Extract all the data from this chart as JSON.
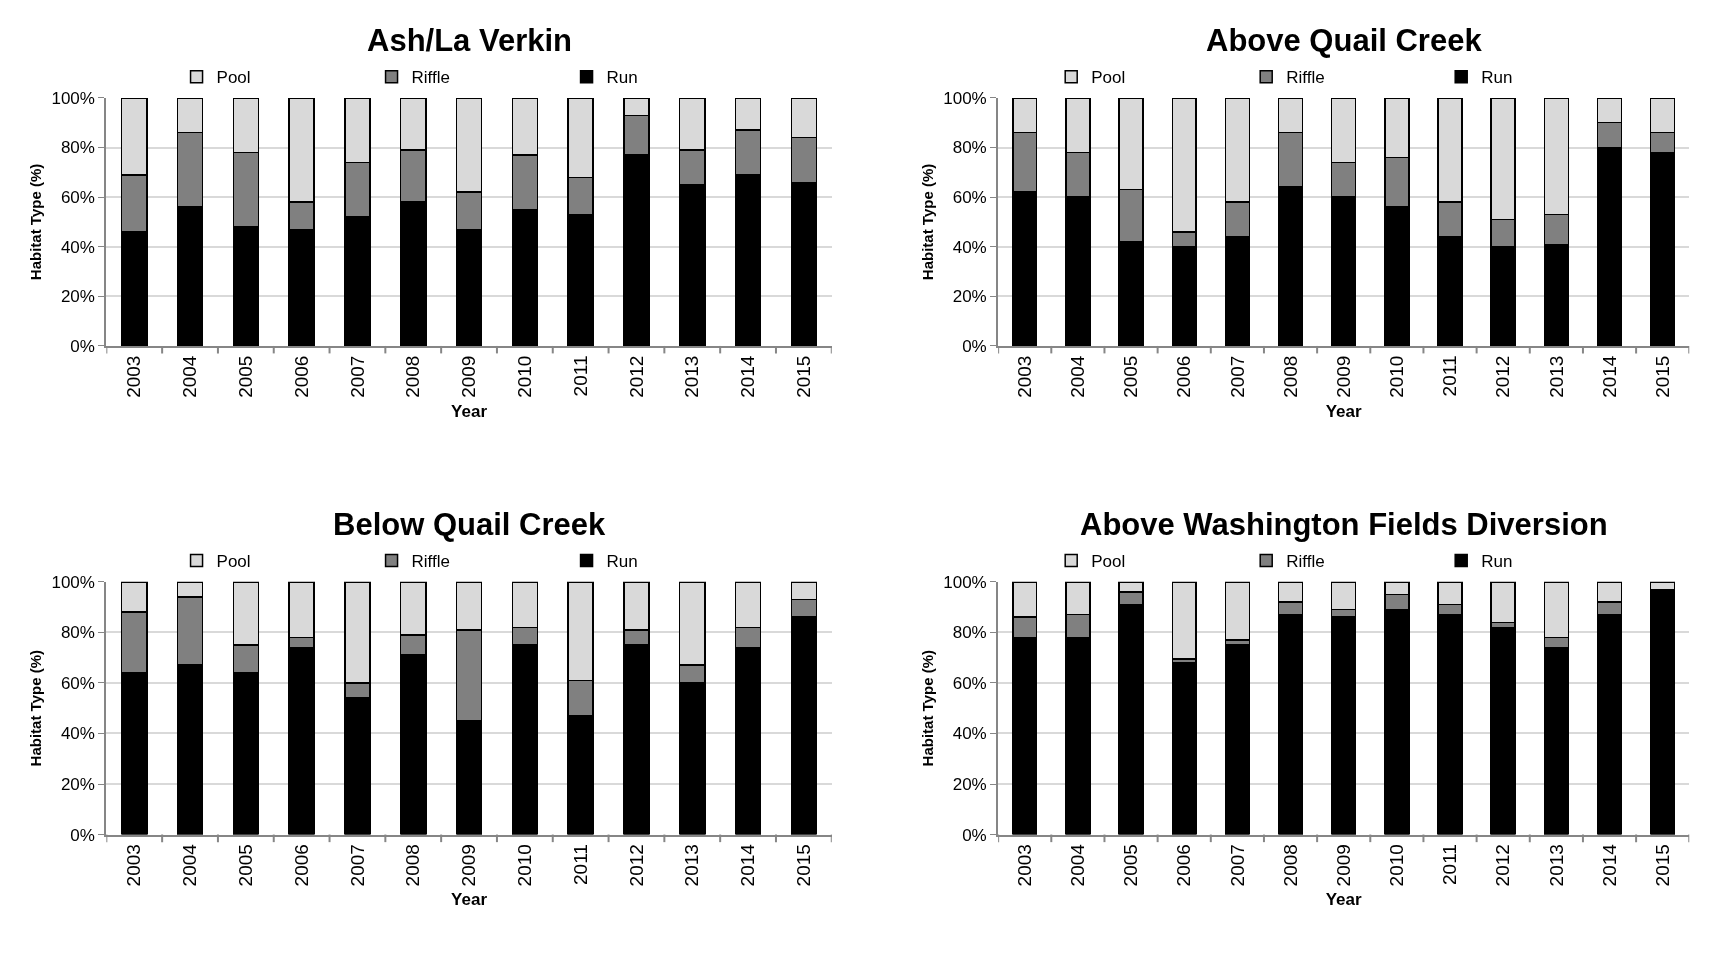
{
  "chart_data": [
    {
      "type": "bar",
      "title": "Ash/La Verkin",
      "xlabel": "Year",
      "ylabel": "Habitat Type (%)",
      "stacked": true,
      "grid": "y",
      "legend": "top",
      "categories": [
        "2003",
        "2004",
        "2005",
        "2006",
        "2007",
        "2008",
        "2009",
        "2010",
        "2011",
        "2012",
        "2013",
        "2014",
        "2015"
      ],
      "ylim": [
        0,
        100
      ],
      "yticks": [
        {
          "value": 0,
          "label": "0%"
        },
        {
          "value": 20,
          "label": "20%"
        },
        {
          "value": 40,
          "label": "40%"
        },
        {
          "value": 60,
          "label": "60%"
        },
        {
          "value": 80,
          "label": "80%"
        },
        {
          "value": 100,
          "label": "100%"
        }
      ],
      "series": [
        {
          "name": "Run",
          "color": "#000000",
          "values": [
            46,
            56,
            48,
            47,
            52,
            58,
            47,
            55,
            53,
            77,
            65,
            69,
            66
          ]
        },
        {
          "name": "Riffle",
          "color": "#808080",
          "values": [
            23,
            30,
            30,
            11,
            22,
            21,
            15,
            22,
            15,
            16,
            14,
            18,
            18
          ]
        },
        {
          "name": "Pool",
          "color": "#d9d9d9",
          "values": [
            31,
            14,
            22,
            42,
            26,
            21,
            38,
            23,
            32,
            7,
            21,
            13,
            16
          ]
        }
      ]
    },
    {
      "type": "bar",
      "title": "Above Quail Creek",
      "xlabel": "Year",
      "ylabel": "Habitat Type (%)",
      "stacked": true,
      "grid": "y",
      "legend": "top",
      "categories": [
        "2003",
        "2004",
        "2005",
        "2006",
        "2007",
        "2008",
        "2009",
        "2010",
        "2011",
        "2012",
        "2013",
        "2014",
        "2015"
      ],
      "ylim": [
        0,
        100
      ],
      "yticks": [
        {
          "value": 0,
          "label": "0%"
        },
        {
          "value": 20,
          "label": "20%"
        },
        {
          "value": 40,
          "label": "40%"
        },
        {
          "value": 60,
          "label": "60%"
        },
        {
          "value": 80,
          "label": "80%"
        },
        {
          "value": 100,
          "label": "100%"
        }
      ],
      "series": [
        {
          "name": "Run",
          "color": "#000000",
          "values": [
            62,
            60,
            42,
            40,
            44,
            64,
            60,
            56,
            44,
            40,
            41,
            80,
            78
          ]
        },
        {
          "name": "Riffle",
          "color": "#808080",
          "values": [
            24,
            18,
            21,
            6,
            14,
            22,
            14,
            20,
            14,
            11,
            12,
            10,
            8
          ]
        },
        {
          "name": "Pool",
          "color": "#d9d9d9",
          "values": [
            14,
            22,
            37,
            54,
            42,
            14,
            26,
            24,
            42,
            49,
            47,
            10,
            14
          ]
        }
      ]
    },
    {
      "type": "bar",
      "title": "Below Quail Creek",
      "xlabel": "Year",
      "ylabel": "Habitat Type (%)",
      "stacked": true,
      "grid": "y",
      "legend": "top",
      "categories": [
        "2003",
        "2004",
        "2005",
        "2006",
        "2007",
        "2008",
        "2009",
        "2010",
        "2011",
        "2012",
        "2013",
        "2014",
        "2015"
      ],
      "ylim": [
        0,
        100
      ],
      "yticks": [
        {
          "value": 0,
          "label": "0%"
        },
        {
          "value": 20,
          "label": "20%"
        },
        {
          "value": 40,
          "label": "40%"
        },
        {
          "value": 60,
          "label": "60%"
        },
        {
          "value": 80,
          "label": "80%"
        },
        {
          "value": 100,
          "label": "100%"
        }
      ],
      "series": [
        {
          "name": "Run",
          "color": "#000000",
          "values": [
            64,
            67,
            64,
            74,
            54,
            71,
            45,
            75,
            47,
            75,
            60,
            74,
            86
          ]
        },
        {
          "name": "Riffle",
          "color": "#808080",
          "values": [
            24,
            27,
            11,
            4,
            6,
            8,
            36,
            7,
            14,
            6,
            7,
            8,
            7
          ]
        },
        {
          "name": "Pool",
          "color": "#d9d9d9",
          "values": [
            12,
            6,
            25,
            22,
            40,
            21,
            19,
            18,
            39,
            19,
            33,
            18,
            7
          ]
        }
      ]
    },
    {
      "type": "bar",
      "title": "Above Washington Fields Diversion",
      "xlabel": "Year",
      "ylabel": "Habitat Type (%)",
      "stacked": true,
      "grid": "y",
      "legend": "top",
      "categories": [
        "2003",
        "2004",
        "2005",
        "2006",
        "2007",
        "2008",
        "2009",
        "2010",
        "2011",
        "2012",
        "2013",
        "2014",
        "2015"
      ],
      "ylim": [
        0,
        100
      ],
      "yticks": [
        {
          "value": 0,
          "label": "0%"
        },
        {
          "value": 20,
          "label": "20%"
        },
        {
          "value": 40,
          "label": "40%"
        },
        {
          "value": 60,
          "label": "60%"
        },
        {
          "value": 80,
          "label": "80%"
        },
        {
          "value": 100,
          "label": "100%"
        }
      ],
      "series": [
        {
          "name": "Run",
          "color": "#000000",
          "values": [
            78,
            78,
            91,
            68,
            75,
            87,
            86,
            89,
            87,
            82,
            74,
            87,
            97
          ]
        },
        {
          "name": "Riffle",
          "color": "#808080",
          "values": [
            8,
            9,
            5,
            1.5,
            2,
            5,
            3,
            6,
            4,
            2,
            4,
            5,
            null
          ]
        },
        {
          "name": "Pool",
          "color": "#d9d9d9",
          "values": [
            14,
            13,
            4,
            30.5,
            23,
            8,
            11,
            5,
            9,
            16,
            22,
            8,
            3
          ]
        }
      ]
    }
  ]
}
